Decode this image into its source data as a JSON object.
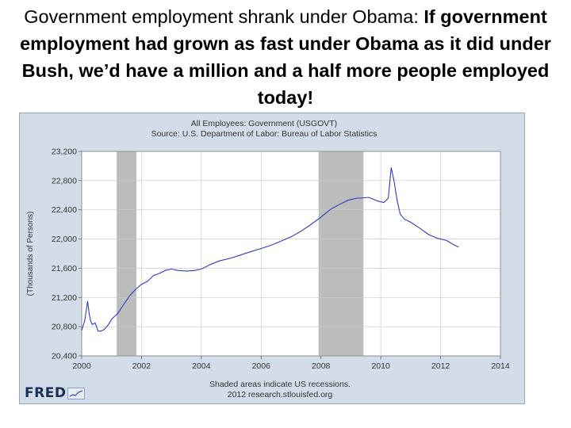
{
  "slide": {
    "title_plain": "Government employment shrank under Obama: ",
    "title_bold": "If government employment had grown as fast under Obama as it did under Bush, we’d have a million and a half more people employed today!"
  },
  "fred": {
    "logo_text": "FRED",
    "footer_line1": "Shaded areas indicate US recessions.",
    "footer_line2": "2012 research.stlouisfed.org"
  },
  "colors": {
    "frame": "#d3dde9",
    "plot": "#ffffff",
    "line": "#2f3bbf",
    "recession": "#bcbcbc",
    "grid": "#c8c8c8"
  },
  "chart_data": {
    "type": "line",
    "title": "All Employees: Government (USGOVT)",
    "subtitle": "Source: U.S. Department of Labor: Bureau of Labor Statistics",
    "xlabel": "",
    "ylabel": "(Thousands of Persons)",
    "xlim": [
      2000,
      2014
    ],
    "ylim": [
      20400,
      23200
    ],
    "x_ticks": [
      2000,
      2002,
      2004,
      2006,
      2008,
      2010,
      2012,
      2014
    ],
    "x_tick_labels": [
      "2000",
      "2002",
      "2004",
      "2006",
      "2008",
      "2010",
      "2012",
      "2014"
    ],
    "y_ticks": [
      20400,
      20800,
      21200,
      21600,
      22000,
      22400,
      22800,
      23200
    ],
    "y_tick_labels": [
      "20,400",
      "20,800",
      "21,200",
      "21,600",
      "22,000",
      "22,400",
      "22,800",
      "23,200"
    ],
    "grid": true,
    "recessions": [
      [
        2001.17,
        2001.83
      ],
      [
        2007.92,
        2009.42
      ]
    ],
    "series": [
      {
        "x": [
          2000.0,
          2000.1,
          2000.2,
          2000.25,
          2000.3,
          2000.35,
          2000.45,
          2000.55,
          2000.65,
          2000.75,
          2000.9,
          2001.0,
          2001.2,
          2001.4,
          2001.6,
          2001.8,
          2002.0,
          2002.2,
          2002.4,
          2002.6,
          2002.8,
          2003.0,
          2003.2,
          2003.5,
          2003.8,
          2004.0,
          2004.3,
          2004.6,
          2005.0,
          2005.3,
          2005.6,
          2006.0,
          2006.3,
          2006.6,
          2007.0,
          2007.3,
          2007.6,
          2008.0,
          2008.3,
          2008.6,
          2008.9,
          2009.2,
          2009.3,
          2009.6,
          2009.9,
          2010.1,
          2010.25,
          2010.35,
          2010.45,
          2010.55,
          2010.65,
          2010.8,
          2011.0,
          2011.3,
          2011.6,
          2011.9,
          2012.2,
          2012.4,
          2012.6
        ],
        "values": [
          20750,
          20880,
          21150,
          20980,
          20880,
          20830,
          20850,
          20740,
          20740,
          20760,
          20830,
          20900,
          20980,
          21100,
          21220,
          21310,
          21380,
          21420,
          21500,
          21530,
          21570,
          21590,
          21570,
          21560,
          21570,
          21590,
          21650,
          21700,
          21740,
          21780,
          21820,
          21870,
          21910,
          21960,
          22030,
          22100,
          22180,
          22300,
          22400,
          22470,
          22530,
          22560,
          22560,
          22570,
          22520,
          22500,
          22560,
          22980,
          22780,
          22520,
          22340,
          22270,
          22230,
          22150,
          22060,
          22010,
          21980,
          21930,
          21890
        ]
      }
    ]
  }
}
